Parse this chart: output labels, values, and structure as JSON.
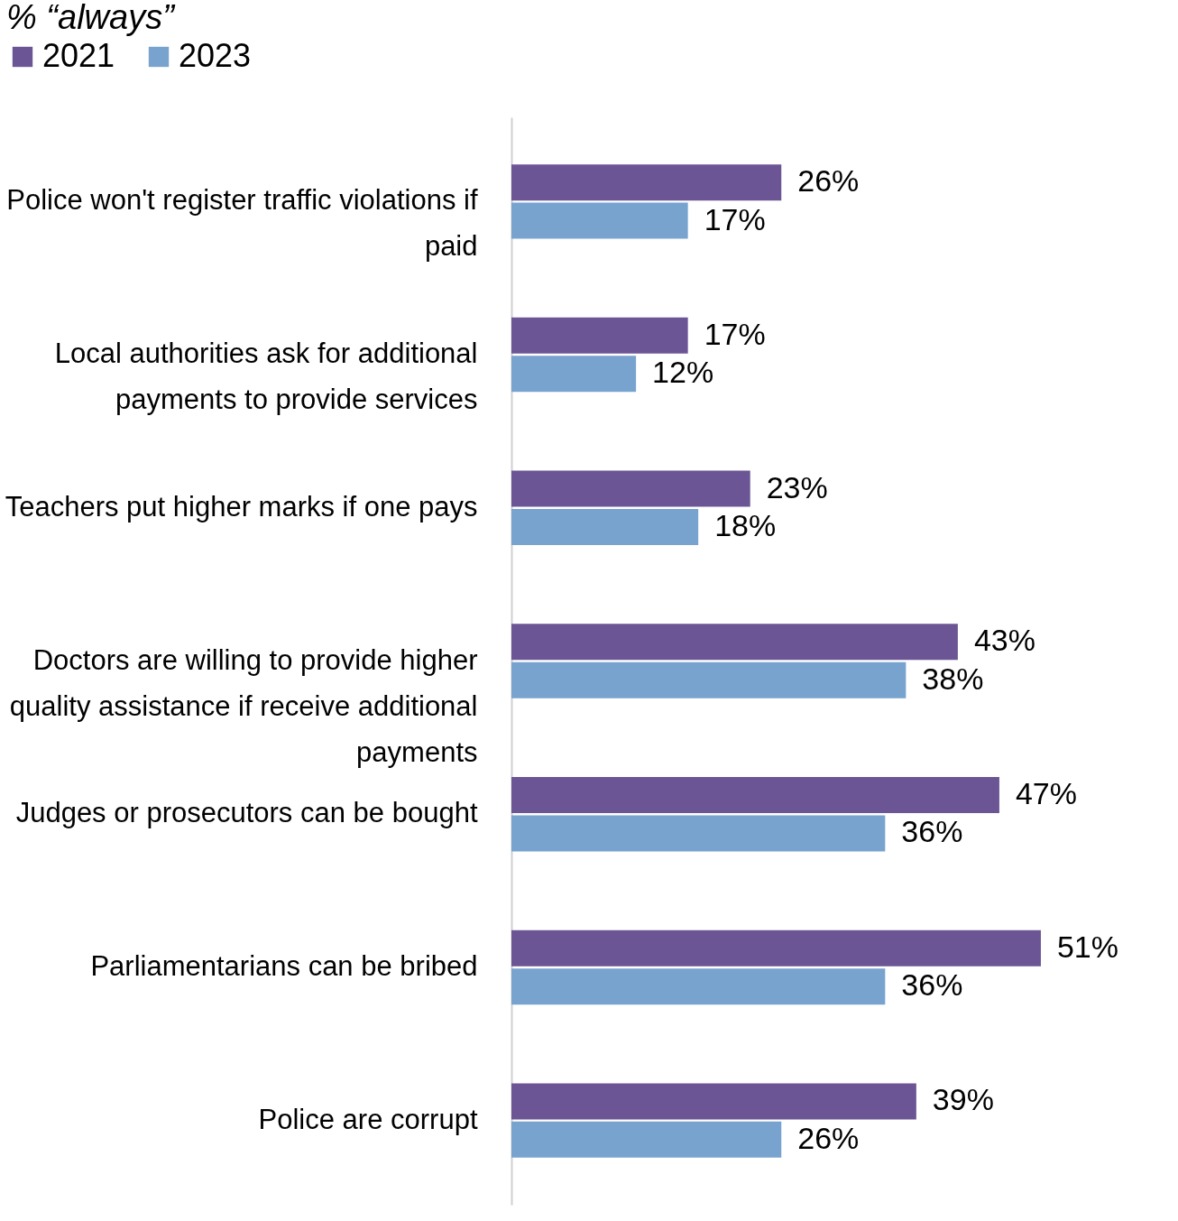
{
  "chart_data": {
    "type": "bar",
    "orientation": "horizontal",
    "legend_title": "% “always”",
    "legend": "top left",
    "categories": [
      "Police won't register traffic violations if paid",
      "Local authorities ask for additional payments to provide services",
      "Teachers put higher marks if one pays",
      "Doctors are willing to provide higher quality assistance if receive additional payments",
      "Judges or prosecutors can be bought",
      "Parliamentarians can be bribed",
      "Police are corrupt"
    ],
    "series": [
      {
        "name": "2021",
        "color": "#6b5594",
        "values": [
          26,
          17,
          23,
          43,
          47,
          51,
          39
        ],
        "value_labels": [
          "26%",
          "17%",
          "23%",
          "43%",
          "47%",
          "51%",
          "39%"
        ]
      },
      {
        "name": "2023",
        "color": "#78a3cf",
        "values": [
          17,
          12,
          18,
          38,
          36,
          36,
          26
        ],
        "value_labels": [
          "17%",
          "12%",
          "18%",
          "38%",
          "36%",
          "36%",
          "26%"
        ]
      }
    ]
  }
}
